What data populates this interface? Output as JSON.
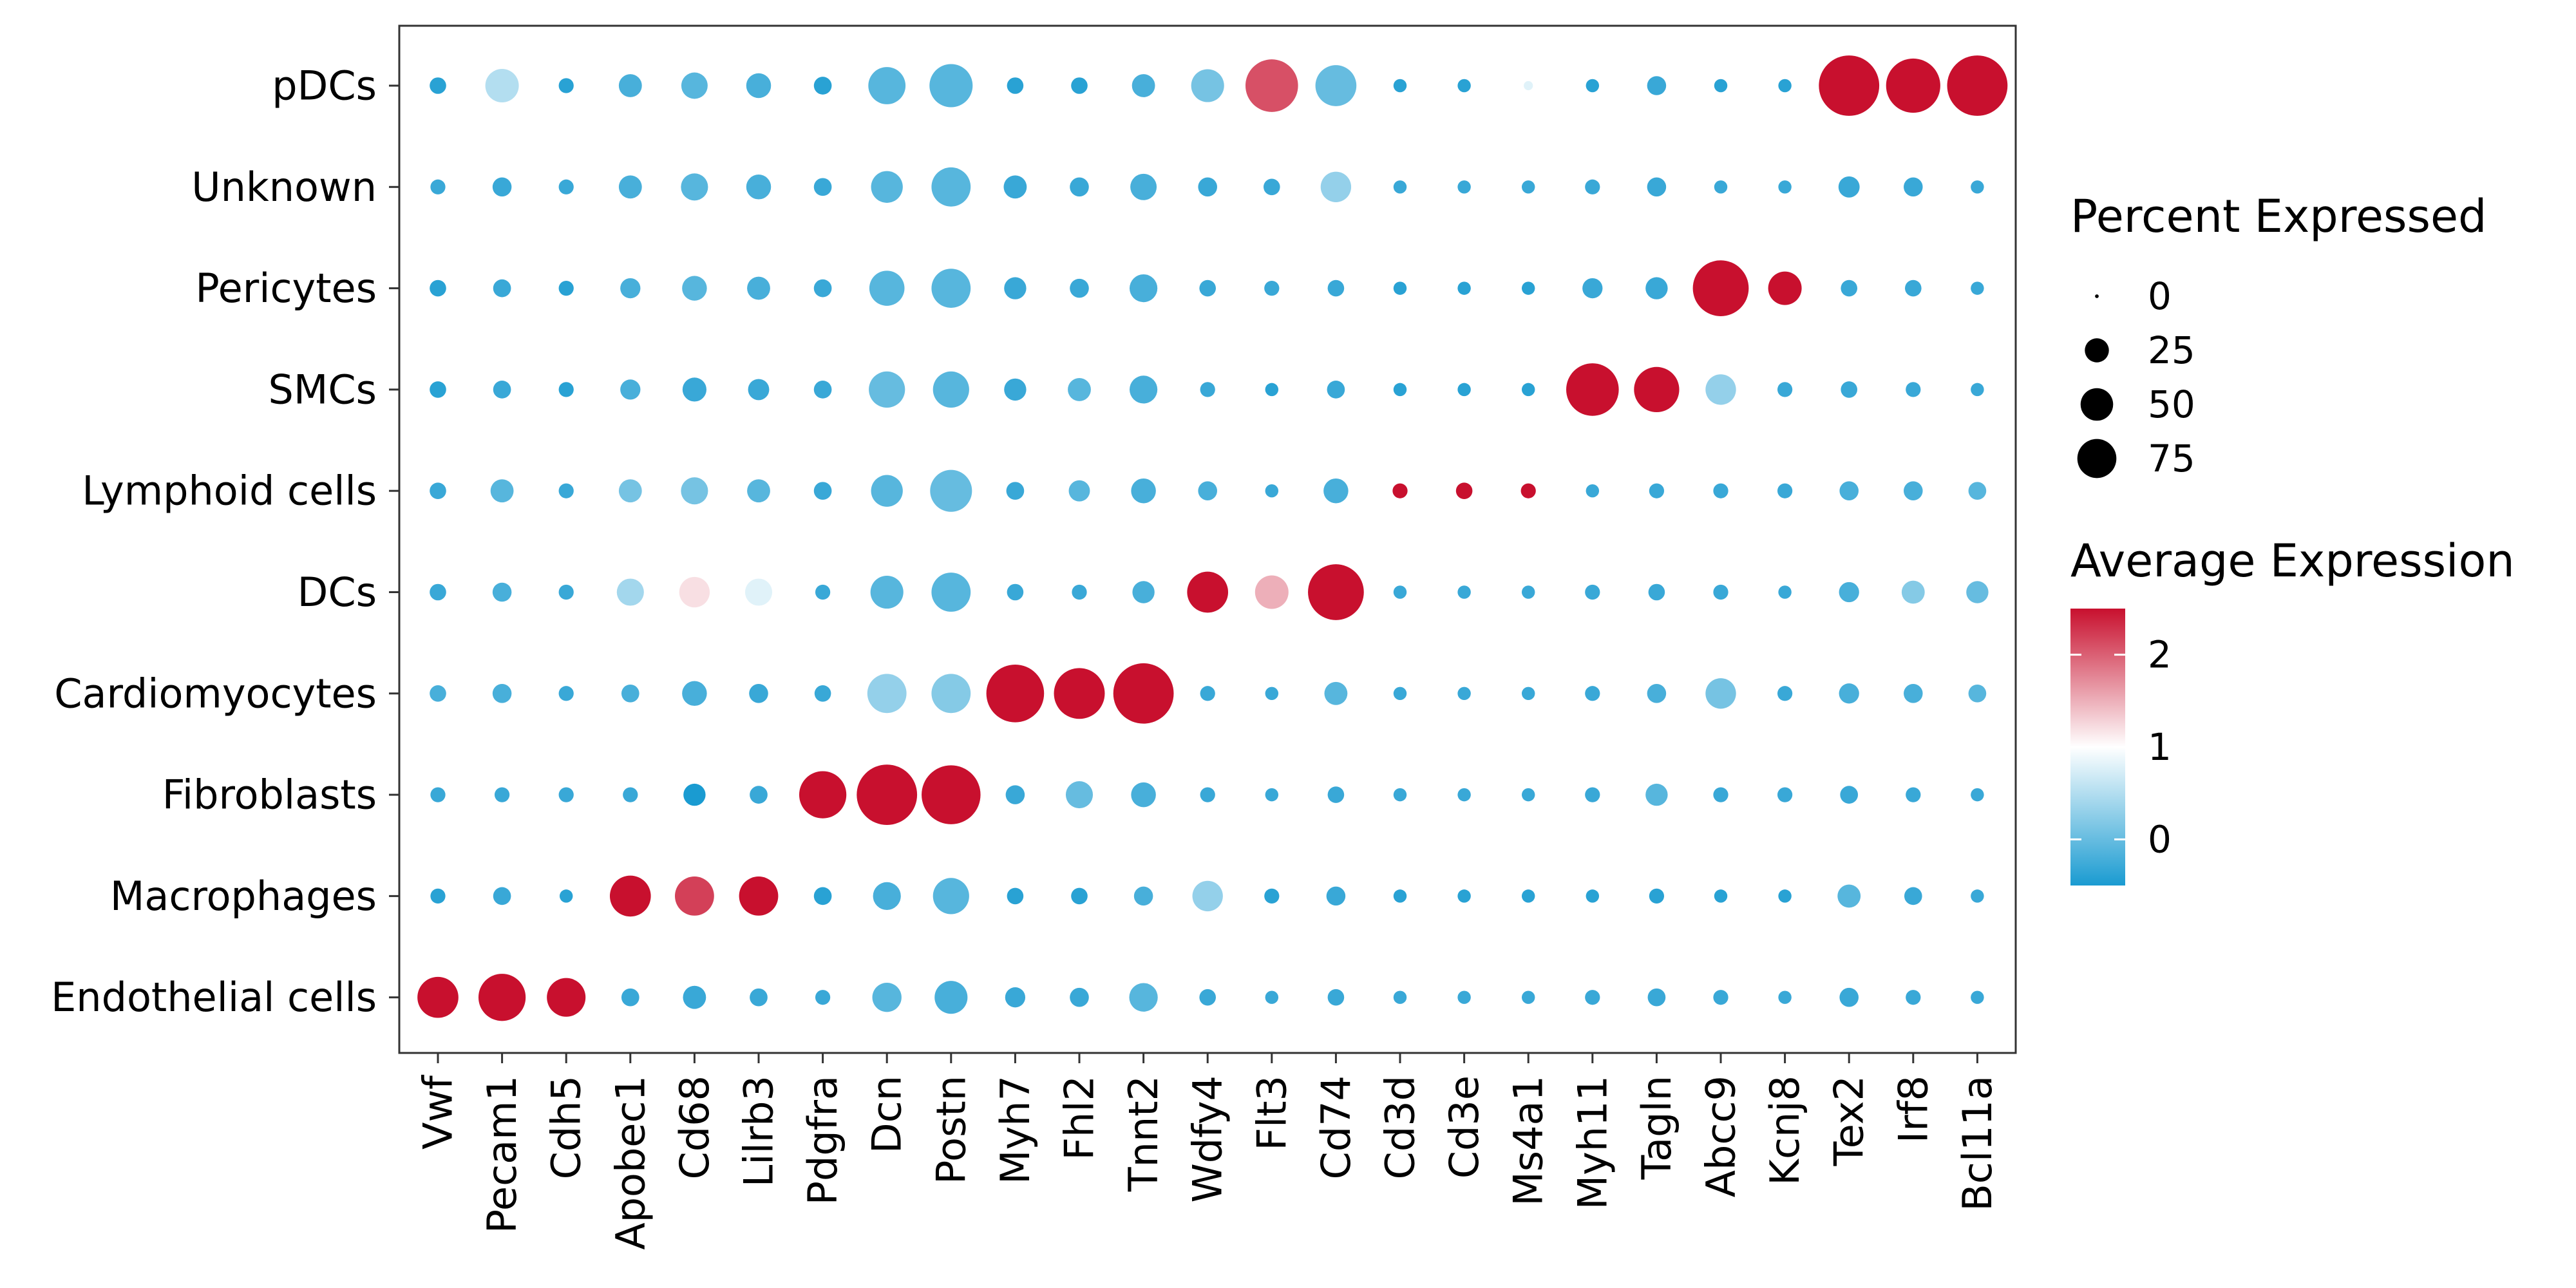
{
  "chart_data": {
    "type": "dot",
    "genes": [
      "Vwf",
      "Pecam1",
      "Cdh5",
      "Apobec1",
      "Cd68",
      "Lilrb3",
      "Pdgfra",
      "Dcn",
      "Postn",
      "Myh7",
      "Fhl2",
      "Tnnt2",
      "Wdfy4",
      "Flt3",
      "Cd74",
      "Cd3d",
      "Cd3e",
      "Ms4a1",
      "Myh11",
      "Tagln",
      "Abcc9",
      "Kcnj8",
      "Tex2",
      "Irf8",
      "Bcl11a"
    ],
    "cell_types": [
      "pDCs",
      "Unknown",
      "Pericytes",
      "SMCs",
      "Lymphoid cells",
      "DCs",
      "Cardiomyocytes",
      "Fibroblasts",
      "Macrophages",
      "Endothelial cells"
    ],
    "percent_expressed": [
      [
        4,
        25,
        3,
        10,
        14,
        12,
        5,
        32,
        45,
        4,
        4,
        10,
        24,
        70,
        40,
        2,
        2,
        0.5,
        2,
        6,
        2,
        2,
        95,
        75,
        95
      ],
      [
        3,
        6,
        3,
        10,
        15,
        12,
        5,
        22,
        36,
        10,
        6,
        14,
        6,
        4,
        20,
        2,
        2,
        2,
        3,
        6,
        2,
        2,
        8,
        6,
        2
      ],
      [
        4,
        5,
        3,
        7,
        12,
        10,
        5,
        28,
        36,
        9,
        6,
        16,
        4,
        3,
        4,
        2,
        2,
        2,
        7,
        9,
        80,
        25,
        4,
        4,
        2
      ],
      [
        4,
        5,
        3,
        7,
        11,
        8,
        5,
        30,
        30,
        9,
        10,
        16,
        3,
        2,
        5,
        2,
        2,
        2,
        70,
        50,
        20,
        3,
        4,
        3,
        2
      ],
      [
        4,
        10,
        3,
        10,
        15,
        10,
        5,
        22,
        42,
        5,
        8,
        12,
        6,
        2,
        12,
        3,
        4,
        3,
        2,
        3,
        3,
        3,
        6,
        6,
        5
      ],
      [
        4,
        6,
        3,
        15,
        20,
        15,
        3,
        24,
        36,
        4,
        3,
        9,
        40,
        25,
        80,
        2,
        2,
        2,
        3,
        4,
        3,
        2,
        7,
        10,
        9
      ],
      [
        4,
        6,
        3,
        5,
        12,
        6,
        4,
        36,
        36,
        86,
        65,
        95,
        3,
        2,
        10,
        2,
        2,
        2,
        3,
        6,
        20,
        3,
        7,
        6,
        5
      ],
      [
        3,
        3,
        3,
        3,
        9,
        5,
        55,
        95,
        90,
        6,
        15,
        12,
        3,
        2,
        4,
        2,
        2,
        2,
        3,
        9,
        3,
        3,
        5,
        3,
        2
      ],
      [
        3,
        5,
        2,
        40,
        36,
        36,
        5,
        16,
        30,
        4,
        4,
        6,
        20,
        3,
        6,
        2,
        2,
        2,
        2,
        3,
        2,
        2,
        10,
        5,
        2
      ],
      [
        40,
        55,
        35,
        5,
        10,
        5,
        3,
        18,
        24,
        7,
        6,
        17,
        4,
        2,
        4,
        2,
        2,
        2,
        3,
        5,
        3,
        2,
        6,
        3,
        2
      ]
    ],
    "average_expression": [
      [
        -0.4,
        0.5,
        -0.4,
        -0.2,
        -0.1,
        -0.2,
        -0.4,
        -0.1,
        -0.1,
        -0.4,
        -0.4,
        -0.2,
        0.1,
        2.1,
        0.0,
        -0.4,
        -0.4,
        0.8,
        -0.4,
        -0.3,
        -0.4,
        -0.4,
        2.5,
        2.5,
        2.5
      ],
      [
        -0.3,
        -0.3,
        -0.3,
        -0.2,
        -0.1,
        -0.2,
        -0.3,
        -0.1,
        -0.1,
        -0.3,
        -0.3,
        -0.2,
        -0.3,
        -0.3,
        0.3,
        -0.3,
        -0.3,
        -0.3,
        -0.3,
        -0.3,
        -0.3,
        -0.3,
        -0.3,
        -0.3,
        -0.3
      ],
      [
        -0.4,
        -0.3,
        -0.4,
        -0.2,
        -0.1,
        -0.2,
        -0.3,
        -0.1,
        -0.1,
        -0.3,
        -0.3,
        -0.2,
        -0.3,
        -0.3,
        -0.3,
        -0.4,
        -0.4,
        -0.4,
        -0.3,
        -0.3,
        2.5,
        2.5,
        -0.3,
        -0.3,
        -0.3
      ],
      [
        -0.4,
        -0.3,
        -0.4,
        -0.2,
        -0.3,
        -0.3,
        -0.3,
        0.0,
        -0.1,
        -0.3,
        -0.1,
        -0.2,
        -0.3,
        -0.4,
        -0.3,
        -0.4,
        -0.4,
        -0.4,
        2.5,
        2.5,
        0.3,
        -0.3,
        -0.3,
        -0.3,
        -0.3
      ],
      [
        -0.3,
        -0.1,
        -0.3,
        0.1,
        0.1,
        -0.1,
        -0.3,
        -0.1,
        0.0,
        -0.3,
        -0.1,
        -0.2,
        -0.2,
        -0.3,
        -0.2,
        2.5,
        2.5,
        2.5,
        -0.3,
        -0.3,
        -0.3,
        -0.3,
        -0.2,
        -0.2,
        -0.1
      ],
      [
        -0.3,
        -0.2,
        -0.3,
        0.4,
        1.2,
        0.8,
        -0.3,
        -0.1,
        -0.1,
        -0.3,
        -0.3,
        -0.2,
        2.5,
        1.5,
        2.5,
        -0.3,
        -0.3,
        -0.3,
        -0.3,
        -0.3,
        -0.3,
        -0.3,
        -0.2,
        0.2,
        0.0
      ],
      [
        -0.2,
        -0.2,
        -0.3,
        -0.2,
        -0.2,
        -0.3,
        -0.3,
        0.3,
        0.2,
        2.5,
        2.5,
        2.5,
        -0.3,
        -0.3,
        -0.1,
        -0.3,
        -0.3,
        -0.3,
        -0.3,
        -0.2,
        0.1,
        -0.3,
        -0.2,
        -0.2,
        -0.1
      ],
      [
        -0.3,
        -0.3,
        -0.3,
        -0.3,
        -0.5,
        -0.3,
        2.5,
        2.5,
        2.5,
        -0.3,
        0.0,
        -0.2,
        -0.3,
        -0.3,
        -0.3,
        -0.3,
        -0.3,
        -0.3,
        -0.3,
        -0.1,
        -0.3,
        -0.3,
        -0.3,
        -0.3,
        -0.3
      ],
      [
        -0.4,
        -0.3,
        -0.4,
        2.5,
        2.2,
        2.5,
        -0.4,
        -0.2,
        -0.1,
        -0.4,
        -0.4,
        -0.2,
        0.3,
        -0.4,
        -0.3,
        -0.4,
        -0.4,
        -0.4,
        -0.4,
        -0.4,
        -0.4,
        -0.4,
        -0.1,
        -0.3,
        -0.3
      ],
      [
        2.5,
        2.5,
        2.5,
        -0.3,
        -0.3,
        -0.3,
        -0.3,
        -0.1,
        -0.2,
        -0.3,
        -0.3,
        -0.1,
        -0.3,
        -0.3,
        -0.3,
        -0.3,
        -0.3,
        -0.3,
        -0.3,
        -0.3,
        -0.3,
        -0.3,
        -0.3,
        -0.3,
        -0.3
      ]
    ],
    "size_legend": {
      "title": "Percent Expressed",
      "values": [
        0,
        25,
        50,
        75
      ]
    },
    "color_legend": {
      "title": "Average Expression",
      "ticks": [
        0,
        1,
        2
      ],
      "range": [
        -0.5,
        2.5
      ],
      "low_color": "#1a9bd1",
      "mid_color": "#ffffff",
      "high_color": "#c8102e",
      "mid_value": 1
    },
    "grid": false,
    "legend_position": "right"
  }
}
